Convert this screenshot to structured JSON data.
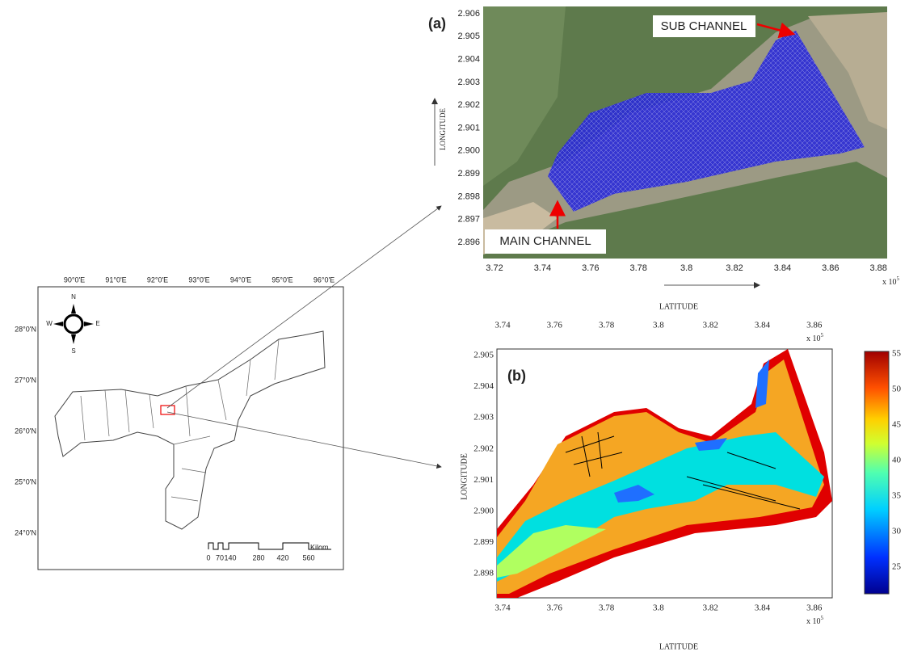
{
  "map": {
    "lon_labels": [
      "90°0'E",
      "91°0'E",
      "92°0'E",
      "93°0'E",
      "94°0'E",
      "95°0'E",
      "96°0'E"
    ],
    "lat_labels": [
      "28°0'N",
      "27°0'N",
      "26°0'N",
      "25°0'N",
      "24°0'N"
    ],
    "compass": [
      "N",
      "S",
      "W",
      "E"
    ],
    "scale_labels": [
      "0",
      "70",
      "140",
      "280",
      "420",
      "560"
    ],
    "scale_unit": "Kilom"
  },
  "panel_a": {
    "label": "(a)",
    "sub_channel": "SUB CHANNEL",
    "main_channel": "MAIN CHANNEL",
    "y_axis_label": "LONGITUDE",
    "x_axis_label": "LATITUDE",
    "x_multiplier": "x 10",
    "x_multiplier_exp": "5",
    "xticks": [
      "3.72",
      "3.74",
      "3.76",
      "3.78",
      "3.8",
      "3.82",
      "3.84",
      "3.86",
      "3.88"
    ],
    "yticks": [
      "2.906",
      "2.905",
      "2.904",
      "2.903",
      "2.902",
      "2.901",
      "2.900",
      "2.899",
      "2.898",
      "2.897",
      "2.896"
    ]
  },
  "panel_b": {
    "label": "(b)",
    "y_axis_label": "LONGITUDE",
    "x_axis_label": "LATITUDE",
    "x_multiplier": "x 10",
    "x_multiplier_exp": "5",
    "xticks": [
      "3.74",
      "3.76",
      "3.78",
      "3.8",
      "3.82",
      "3.84",
      "3.86"
    ],
    "yticks": [
      "2.905",
      "2.904",
      "2.903",
      "2.902",
      "2.901",
      "2.900",
      "2.899",
      "2.898"
    ],
    "colorbar_ticks": [
      "55",
      "50",
      "45",
      "40",
      "35",
      "30",
      "25"
    ]
  }
}
